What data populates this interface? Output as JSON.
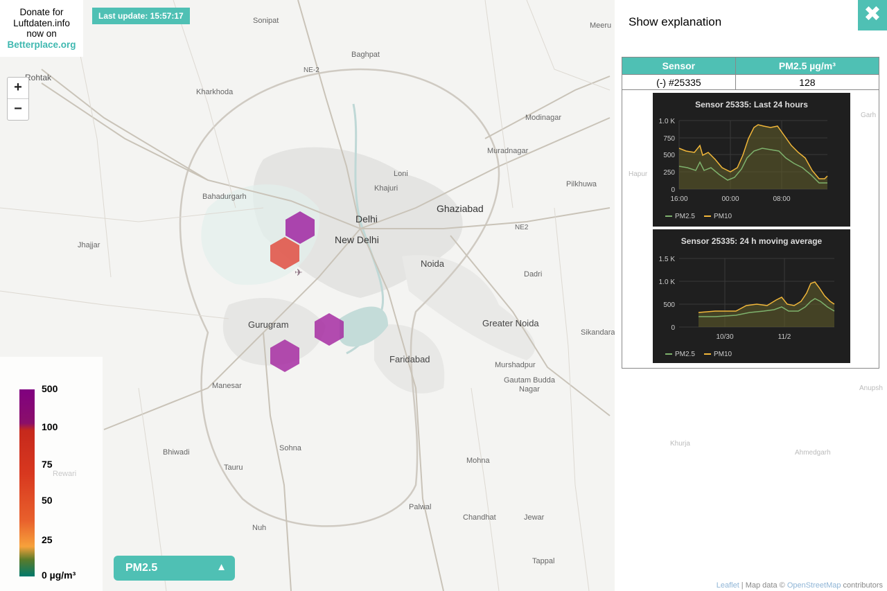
{
  "donate": {
    "line1": "Donate for",
    "line2": "Luftdaten.info",
    "line3": "now on",
    "link": "Betterplace.org"
  },
  "last_update": "Last update: 15:57:17",
  "zoom": {
    "in": "+",
    "out": "−"
  },
  "legend": {
    "ticks": [
      "500",
      "100",
      "75",
      "50",
      "25",
      "0 µg/m³"
    ]
  },
  "selector": {
    "label": "PM2.5",
    "arrow": "▲"
  },
  "panel": {
    "explanation": "Show explanation",
    "close_icon": "✖",
    "table": {
      "headers": [
        "Sensor",
        "PM2.5 µg/m³"
      ],
      "row": [
        "(-) #25335",
        "128"
      ]
    }
  },
  "graphs": [
    {
      "title": "Sensor 25335: Last 24 hours",
      "y_ticks": [
        "1.0 K",
        "750",
        "500",
        "250",
        "0"
      ],
      "y_values": [
        1000,
        750,
        500,
        250,
        0
      ],
      "x_ticks": [
        "16:00",
        "00:00",
        "08:00"
      ],
      "legend": [
        "PM2.5",
        "PM10"
      ]
    },
    {
      "title": "Sensor 25335: 24 h moving average",
      "y_ticks": [
        "1.5 K",
        "1.0 K",
        "500",
        "0"
      ],
      "y_values": [
        1500,
        1000,
        500,
        0
      ],
      "x_ticks": [
        "10/30",
        "11/2"
      ],
      "legend": [
        "PM2.5",
        "PM10"
      ]
    }
  ],
  "map_labels": {
    "sonipat": "Sonipat",
    "meerut": "Meeru",
    "rohtak": "Rohtak",
    "baghpat": "Baghpat",
    "ne2": "NE-2",
    "ne2b": "NE2",
    "kharkhoda": "Kharkhoda",
    "modinagar": "Modinagar",
    "muradnagar": "Muradnagar",
    "loni": "Loni",
    "khajuri": "Khajuri",
    "pilkhuwa": "Pilkhuwa",
    "hapur": "Hapur",
    "bahadurgarh": "Bahadurgarh",
    "ghaziabad": "Ghaziabad",
    "delhi": "Delhi",
    "new_delhi": "New Delhi",
    "jhajjar": "Jhajjar",
    "noida": "Noida",
    "dadri": "Dadri",
    "gurugram": "Gurugram",
    "greater_noida": "Greater Noida",
    "sikandarabad": "Sikandarabad",
    "faridabad": "Faridabad",
    "manesar": "Manesar",
    "murshadpur": "Murshadpur",
    "gautam1": "Gautam Budda",
    "gautam2": "Nagar",
    "anupshahr": "Anupsh",
    "sohna": "Sohna",
    "khurja": "Khurja",
    "ahmedgarh": "Ahmedgarh",
    "mohna": "Mohna",
    "rewari": "Rewari",
    "bhiwadi": "Bhiwadi",
    "tauru": "Tauru",
    "palwal": "Palwal",
    "chandhat": "Chandhat",
    "jewar": "Jewar",
    "nuh": "Nuh",
    "tappal": "Tappal",
    "garh": "Garh"
  },
  "attribution": {
    "leaflet": "Leaflet",
    "sep": " | Map data © ",
    "osm": "OpenStreetMap",
    "rest": " contributors"
  }
}
